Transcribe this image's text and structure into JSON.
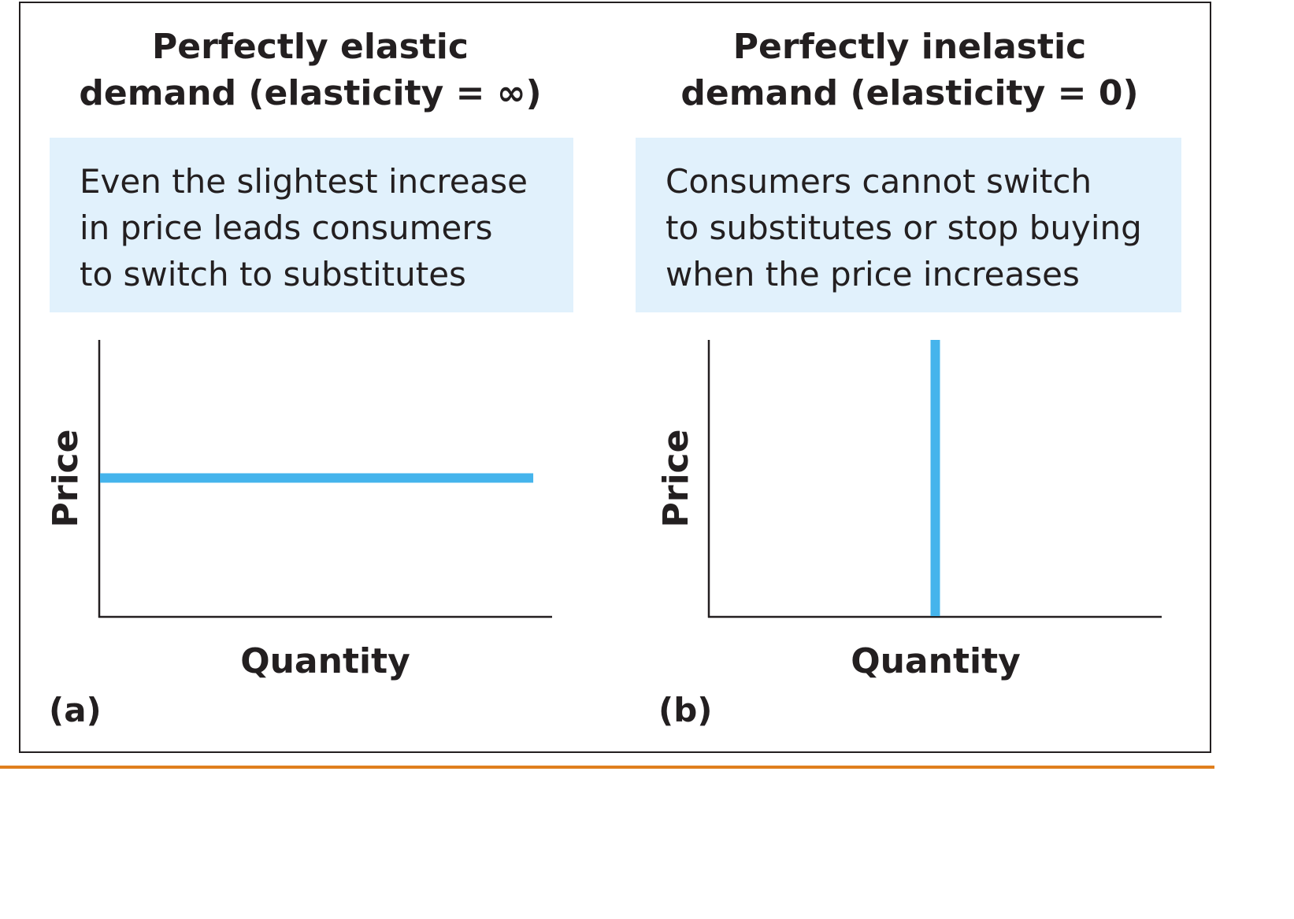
{
  "chart_data": [
    {
      "type": "line",
      "panel_label": "(a)",
      "title": "Perfectly elastic\ndemand (elasticity = ∞)",
      "note": "Even the slightest increase\nin price leads consumers\nto switch to substitutes",
      "xlabel": "Quantity",
      "ylabel": "Price",
      "xlim": [
        0,
        1
      ],
      "ylim": [
        0,
        1
      ],
      "grid": false,
      "series": [
        {
          "x": [
            0,
            0.96
          ],
          "y": [
            0.5,
            0.5
          ],
          "color": "#45b4ec"
        }
      ]
    },
    {
      "type": "line",
      "panel_label": "(b)",
      "title": "Perfectly inelastic\ndemand (elasticity = 0)",
      "note": "Consumers cannot switch\nto substitutes or stop buying\nwhen the price increases",
      "xlabel": "Quantity",
      "ylabel": "Price",
      "xlim": [
        0,
        1
      ],
      "ylim": [
        0,
        1
      ],
      "grid": false,
      "series": [
        {
          "x": [
            0.5,
            0.5
          ],
          "y": [
            0,
            1
          ],
          "color": "#45b4ec"
        }
      ]
    }
  ],
  "colors": {
    "curve": "#45b4ec",
    "note_background": "#e1f1fc",
    "frame": "#231f20",
    "rule": "#e07f1e"
  }
}
